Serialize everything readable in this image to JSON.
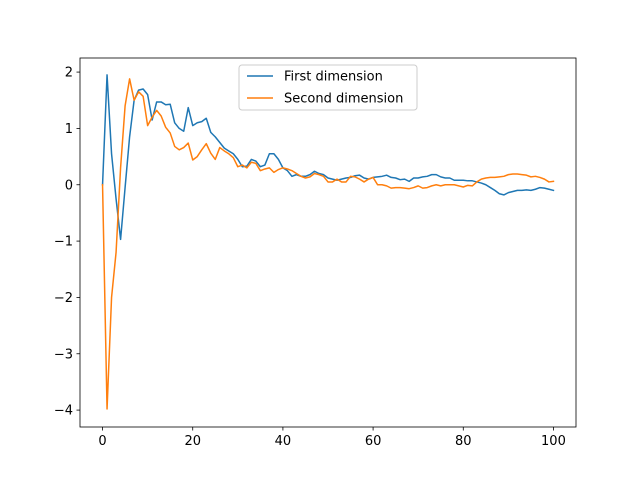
{
  "chart_data": {
    "type": "line",
    "title": "",
    "xlabel": "",
    "ylabel": "",
    "xlim": [
      -5,
      105
    ],
    "ylim": [
      -4.3,
      2.25
    ],
    "xticks": [
      0,
      20,
      40,
      60,
      80,
      100
    ],
    "yticks": [
      -4,
      -3,
      -2,
      -1,
      0,
      1,
      2
    ],
    "xtick_labels": [
      "0",
      "20",
      "40",
      "60",
      "80",
      "100"
    ],
    "ytick_labels": [
      "−4",
      "−3",
      "−2",
      "−1",
      "0",
      "1",
      "2"
    ],
    "grid": false,
    "legend_position": "top-center",
    "series": [
      {
        "name": "First dimension",
        "color": "#1f77b4",
        "x": [
          0,
          1,
          2,
          3,
          4,
          5,
          6,
          7,
          8,
          9,
          10,
          11,
          12,
          13,
          14,
          15,
          16,
          17,
          18,
          19,
          20,
          21,
          22,
          23,
          24,
          25,
          26,
          27,
          28,
          29,
          30,
          31,
          32,
          33,
          34,
          35,
          36,
          37,
          38,
          39,
          40,
          41,
          42,
          43,
          44,
          45,
          46,
          47,
          48,
          49,
          50,
          51,
          52,
          53,
          54,
          55,
          56,
          57,
          58,
          59,
          60,
          61,
          62,
          63,
          64,
          65,
          66,
          67,
          68,
          69,
          70,
          71,
          72,
          73,
          74,
          75,
          76,
          77,
          78,
          79,
          80,
          81,
          82,
          83,
          84,
          85,
          86,
          87,
          88,
          89,
          90,
          91,
          92,
          93,
          94,
          95,
          96,
          97,
          98,
          99,
          100
        ],
        "y": [
          0.0,
          1.95,
          0.55,
          -0.25,
          -0.97,
          -0.05,
          0.85,
          1.5,
          1.68,
          1.7,
          1.6,
          1.15,
          1.47,
          1.47,
          1.42,
          1.43,
          1.1,
          1.0,
          0.95,
          1.37,
          1.05,
          1.1,
          1.12,
          1.18,
          0.93,
          0.85,
          0.75,
          0.65,
          0.6,
          0.55,
          0.45,
          0.32,
          0.33,
          0.45,
          0.42,
          0.32,
          0.35,
          0.55,
          0.55,
          0.45,
          0.3,
          0.25,
          0.15,
          0.18,
          0.15,
          0.15,
          0.18,
          0.24,
          0.2,
          0.18,
          0.12,
          0.1,
          0.08,
          0.1,
          0.12,
          0.13,
          0.16,
          0.17,
          0.12,
          0.1,
          0.13,
          0.14,
          0.15,
          0.17,
          0.13,
          0.12,
          0.09,
          0.1,
          0.06,
          0.12,
          0.12,
          0.14,
          0.15,
          0.18,
          0.18,
          0.14,
          0.12,
          0.12,
          0.08,
          0.08,
          0.08,
          0.07,
          0.07,
          0.05,
          0.03,
          0.0,
          -0.05,
          -0.1,
          -0.16,
          -0.18,
          -0.14,
          -0.12,
          -0.1,
          -0.1,
          -0.09,
          -0.1,
          -0.08,
          -0.05,
          -0.06,
          -0.08,
          -0.1
        ]
      },
      {
        "name": "Second dimension",
        "color": "#ff7f0e",
        "x": [
          0,
          1,
          2,
          3,
          4,
          5,
          6,
          7,
          8,
          9,
          10,
          11,
          12,
          13,
          14,
          15,
          16,
          17,
          18,
          19,
          20,
          21,
          22,
          23,
          24,
          25,
          26,
          27,
          28,
          29,
          30,
          31,
          32,
          33,
          34,
          35,
          36,
          37,
          38,
          39,
          40,
          41,
          42,
          43,
          44,
          45,
          46,
          47,
          48,
          49,
          50,
          51,
          52,
          53,
          54,
          55,
          56,
          57,
          58,
          59,
          60,
          61,
          62,
          63,
          64,
          65,
          66,
          67,
          68,
          69,
          70,
          71,
          72,
          73,
          74,
          75,
          76,
          77,
          78,
          79,
          80,
          81,
          82,
          83,
          84,
          85,
          86,
          87,
          88,
          89,
          90,
          91,
          92,
          93,
          94,
          95,
          96,
          97,
          98,
          99,
          100
        ],
        "y": [
          0.0,
          -3.98,
          -2.0,
          -1.2,
          0.3,
          1.4,
          1.88,
          1.5,
          1.65,
          1.57,
          1.05,
          1.2,
          1.32,
          1.22,
          1.02,
          0.92,
          0.68,
          0.62,
          0.66,
          0.74,
          0.44,
          0.5,
          0.62,
          0.73,
          0.56,
          0.45,
          0.66,
          0.6,
          0.55,
          0.48,
          0.32,
          0.35,
          0.3,
          0.4,
          0.38,
          0.25,
          0.28,
          0.3,
          0.22,
          0.27,
          0.3,
          0.28,
          0.25,
          0.2,
          0.15,
          0.12,
          0.14,
          0.2,
          0.18,
          0.15,
          0.05,
          0.05,
          0.1,
          0.05,
          0.05,
          0.15,
          0.14,
          0.1,
          0.05,
          0.1,
          0.13,
          0.0,
          0.0,
          -0.02,
          -0.06,
          -0.05,
          -0.05,
          -0.06,
          -0.07,
          -0.05,
          -0.02,
          -0.06,
          -0.05,
          -0.02,
          0.0,
          -0.02,
          0.0,
          0.0,
          0.0,
          -0.02,
          -0.04,
          -0.01,
          -0.02,
          0.05,
          0.1,
          0.12,
          0.13,
          0.13,
          0.14,
          0.15,
          0.18,
          0.19,
          0.19,
          0.18,
          0.17,
          0.14,
          0.15,
          0.13,
          0.1,
          0.05,
          0.06
        ]
      }
    ]
  }
}
